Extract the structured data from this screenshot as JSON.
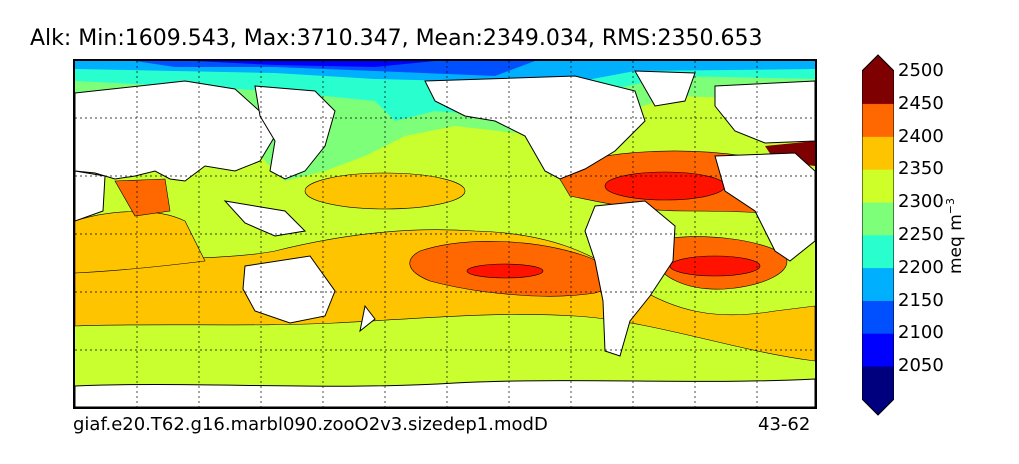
{
  "title": "Alk: Min:1609.543, Max:3710.347, Mean:2349.034, RMS:2350.653",
  "footer": {
    "run_name": "giaf.e20.T62.g16.marbl090.zooO2v3.sizedep1.modD",
    "years": "43-62"
  },
  "colorbar": {
    "ticks": [
      "2050",
      "2100",
      "2150",
      "2200",
      "2250",
      "2300",
      "2350",
      "2400",
      "2450",
      "2500"
    ],
    "unit_base": "meq m",
    "unit_exp": "−3",
    "levels": [
      {
        "range": "<2050",
        "color": "#00007f"
      },
      {
        "range": "2050-2100",
        "color": "#0000ff"
      },
      {
        "range": "2100-2150",
        "color": "#0050ff"
      },
      {
        "range": "2150-2200",
        "color": "#00b0ff"
      },
      {
        "range": "2200-2250",
        "color": "#29ffce"
      },
      {
        "range": "2250-2300",
        "color": "#7dff7a"
      },
      {
        "range": "2300-2350",
        "color": "#ceff29"
      },
      {
        "range": "2350-2400",
        "color": "#ffc400"
      },
      {
        "range": "2400-2450",
        "color": "#ff6800"
      },
      {
        "range": "2450-2500",
        "color": "#ff1300"
      },
      {
        "range": ">2500",
        "color": "#7f0000"
      }
    ]
  }
}
